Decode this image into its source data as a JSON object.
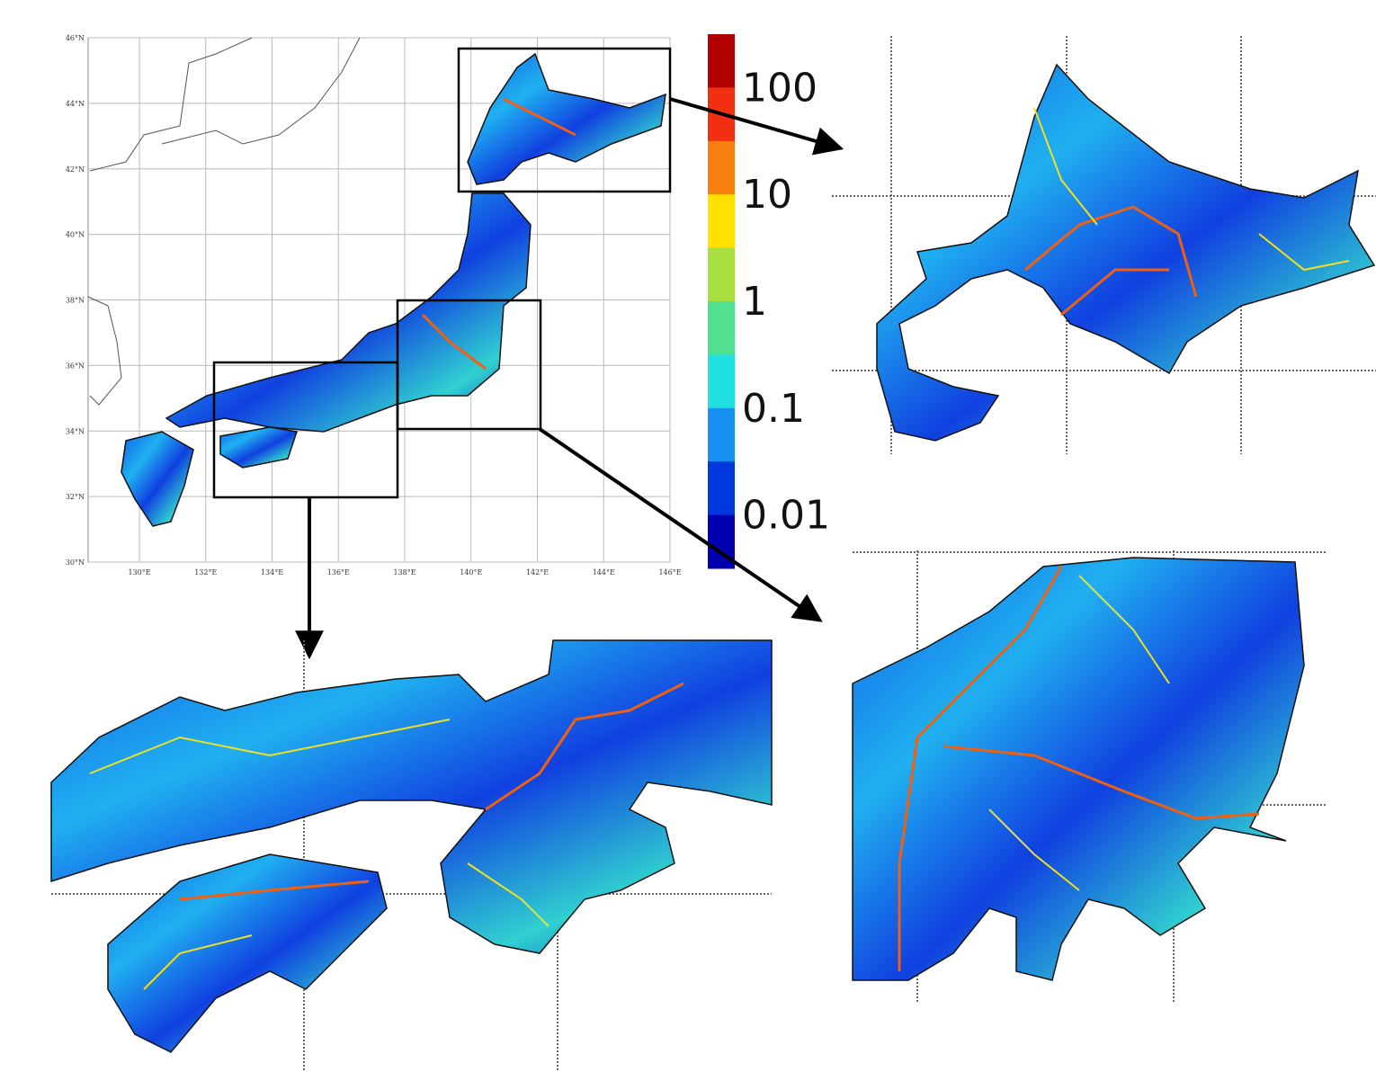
{
  "map": {
    "latitude_labels": [
      "46°N",
      "44°N",
      "42°N",
      "40°N",
      "38°N",
      "36°N",
      "34°N",
      "32°N",
      "30°N"
    ],
    "longitude_labels": [
      "130°E",
      "132°E",
      "134°E",
      "136°E",
      "138°E",
      "140°E",
      "142°E",
      "144°E",
      "146°E"
    ],
    "colorbar": {
      "labels": [
        "100",
        "10",
        "1",
        "0.1",
        "0.01"
      ],
      "colors": [
        "#b00000",
        "#f03010",
        "#f88010",
        "#ffe000",
        "#a8e040",
        "#50e090",
        "#20e0e0",
        "#1890f0",
        "#0038e0",
        "#0000b0"
      ]
    }
  }
}
